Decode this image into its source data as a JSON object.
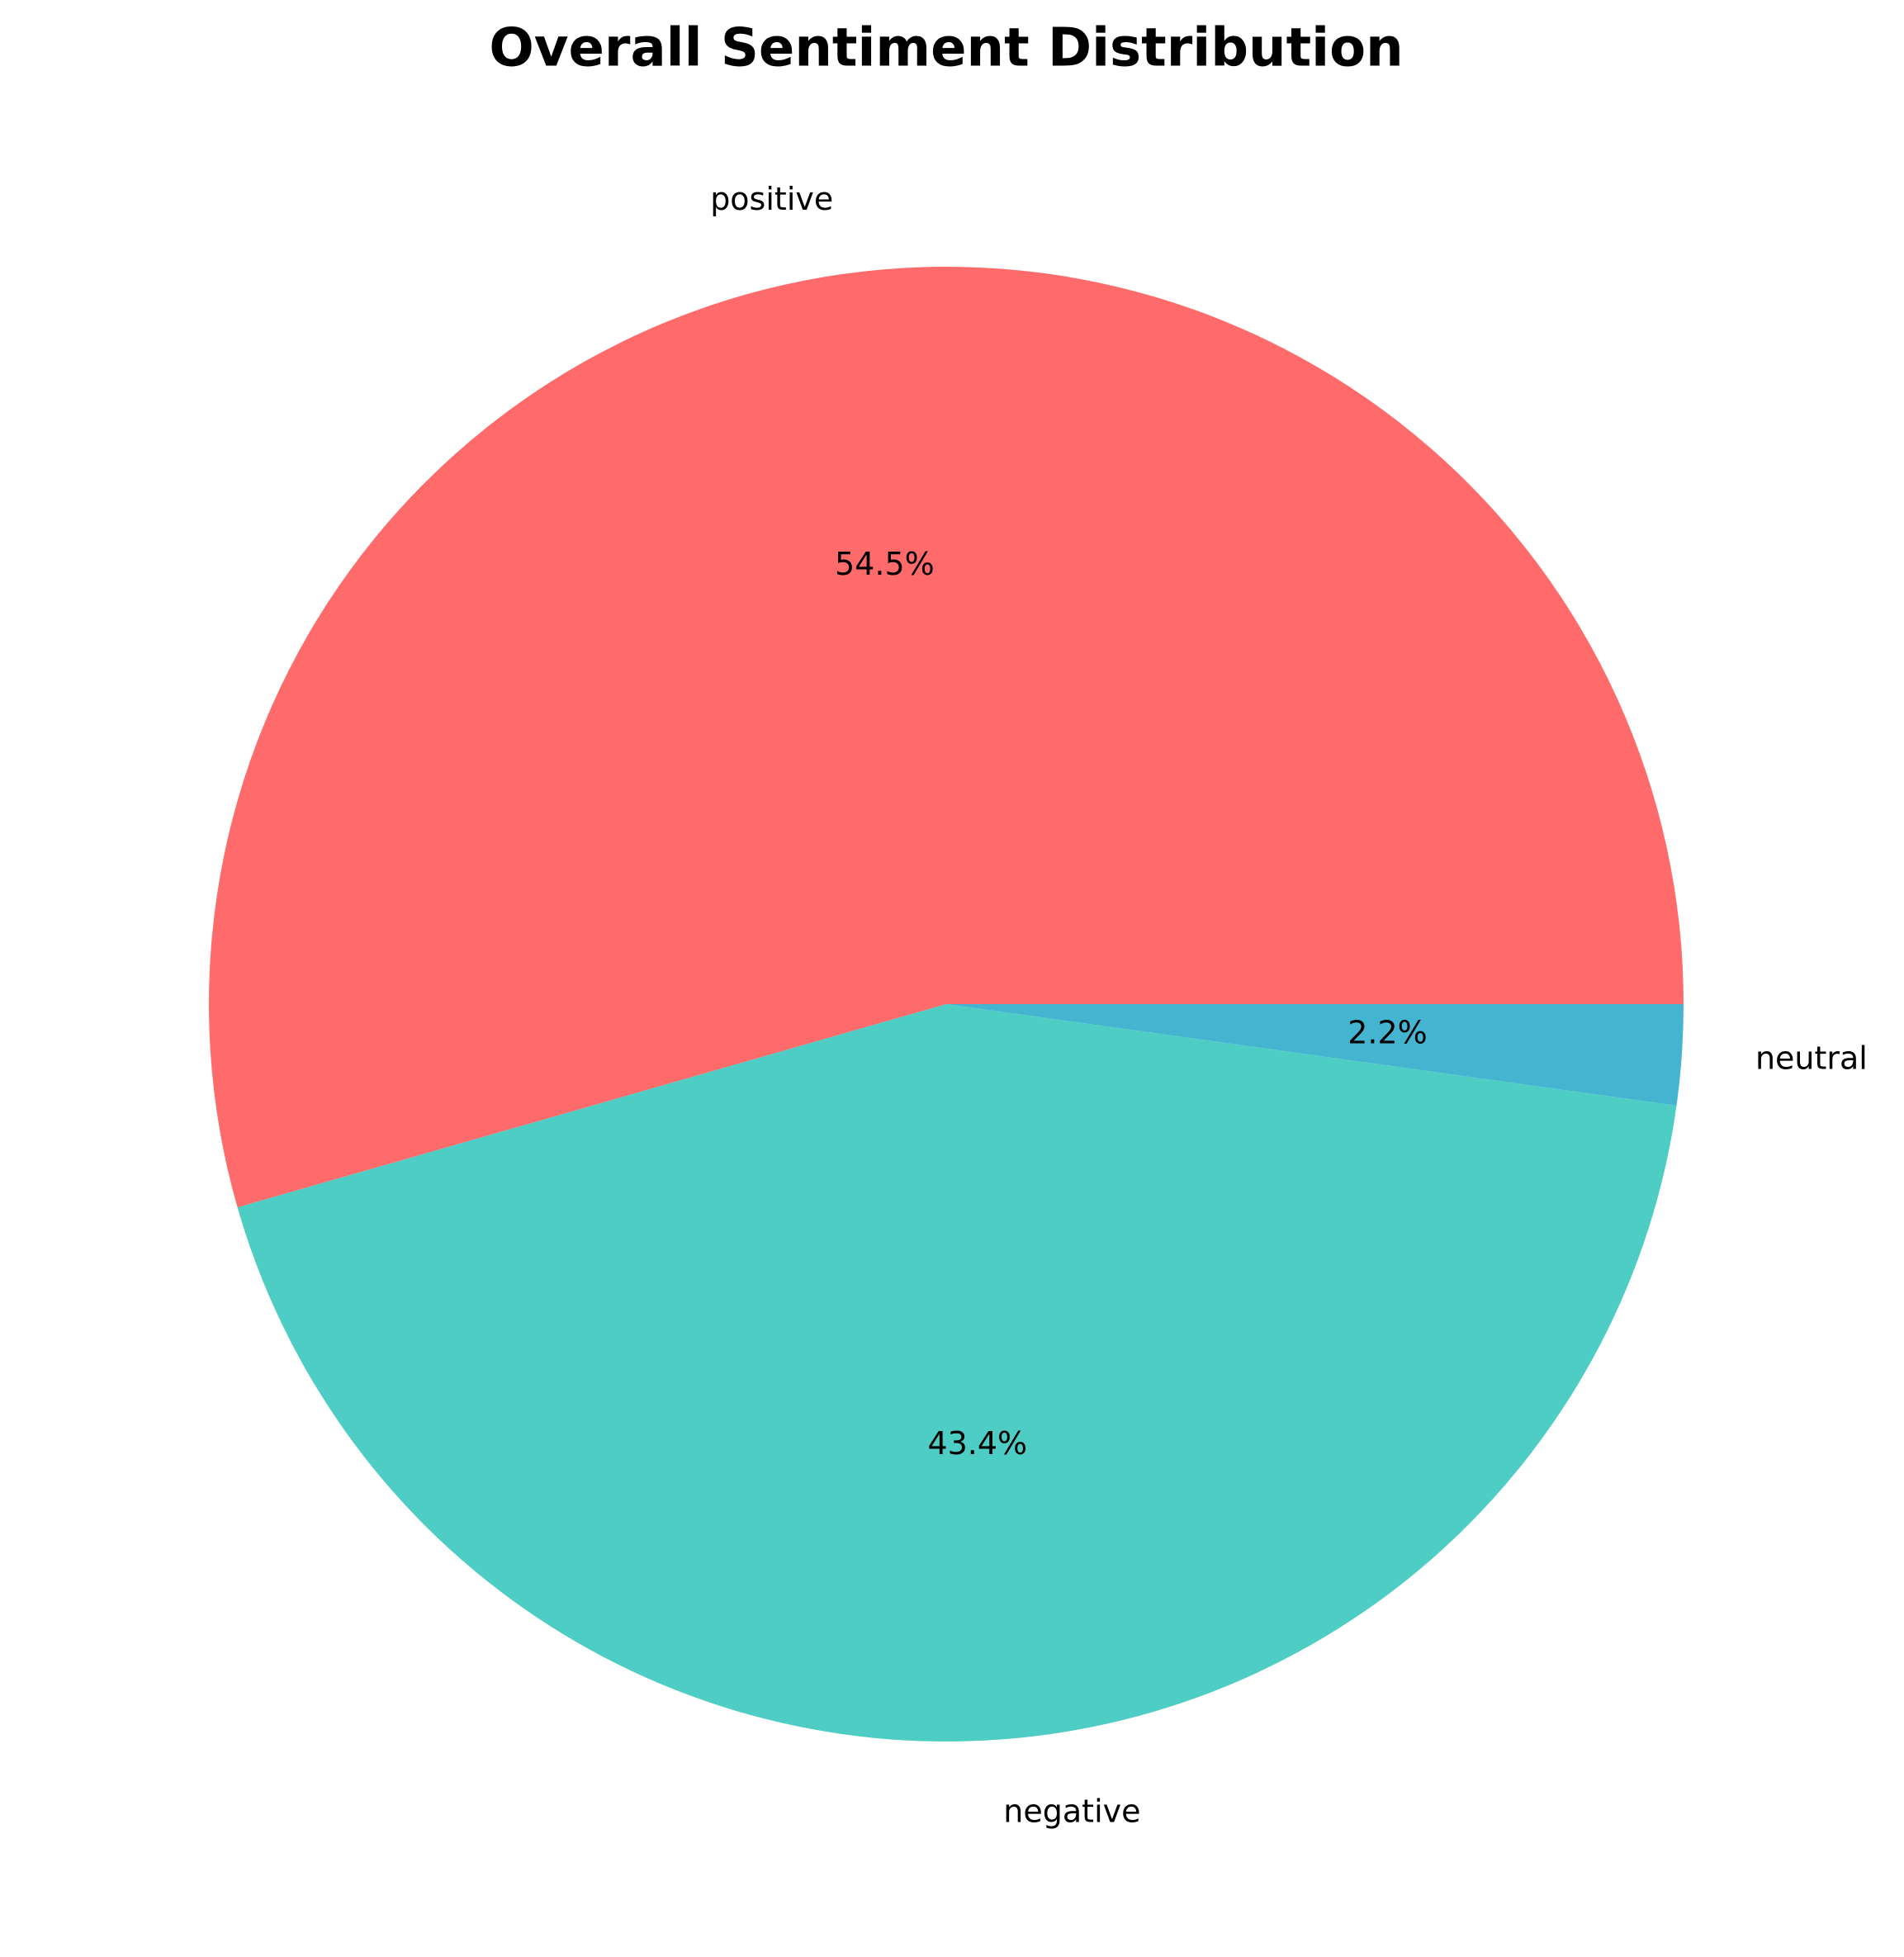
{
  "chart_data": {
    "type": "pie",
    "title": "Overall Sentiment Distribution",
    "start_angle_deg": 0,
    "direction": "counterclockwise",
    "slices": [
      {
        "label": "positive",
        "value": 54.5,
        "pct_label": "54.5%",
        "color": "#FF6B6B"
      },
      {
        "label": "negative",
        "value": 43.4,
        "pct_label": "43.4%",
        "color": "#4ECDC4"
      },
      {
        "label": "neutral",
        "value": 2.2,
        "pct_label": "2.2%",
        "color": "#45B4D0"
      }
    ]
  }
}
